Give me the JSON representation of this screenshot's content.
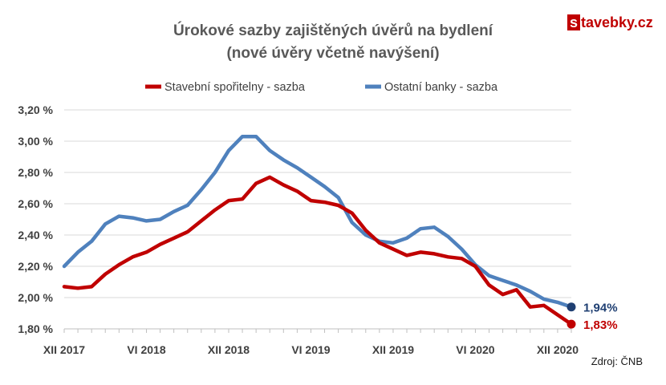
{
  "logo": {
    "badge": "s",
    "rest": "tavebky.cz"
  },
  "chart_data": {
    "type": "line",
    "title": "Úrokové sazby zajištěných úvěrů na bydlení",
    "subtitle": "(nové úvěry včetně navýšení)",
    "x_tick_labels": [
      "XII 2017",
      "VI 2018",
      "XII 2018",
      "VI 2019",
      "XII 2019",
      "VI 2020",
      "XII 2020"
    ],
    "y_tick_labels": [
      "1,80 %",
      "2,00 %",
      "2,20 %",
      "2,40 %",
      "2,60 %",
      "2,80 %",
      "3,00 %",
      "3,20 %"
    ],
    "ylim": [
      1.8,
      3.2
    ],
    "ytick_step": 0.2,
    "grid": "horizontal",
    "legend_position": "top",
    "series": [
      {
        "name": "Stavební spořitelny - sazba",
        "color": "#c00000",
        "end_label": "1,83%",
        "values": [
          2.07,
          2.06,
          2.07,
          2.15,
          2.21,
          2.26,
          2.29,
          2.34,
          2.38,
          2.42,
          2.49,
          2.56,
          2.62,
          2.63,
          2.73,
          2.77,
          2.72,
          2.68,
          2.62,
          2.61,
          2.59,
          2.54,
          2.43,
          2.35,
          2.31,
          2.27,
          2.29,
          2.28,
          2.26,
          2.25,
          2.2,
          2.08,
          2.02,
          2.05,
          1.94,
          1.95,
          1.89,
          1.83
        ]
      },
      {
        "name": "Ostatní banky - sazba",
        "color": "#4f81bd",
        "end_label": "1,94%",
        "values": [
          2.2,
          2.29,
          2.36,
          2.47,
          2.52,
          2.51,
          2.49,
          2.5,
          2.55,
          2.59,
          2.69,
          2.8,
          2.94,
          3.03,
          3.03,
          2.94,
          2.88,
          2.83,
          2.77,
          2.71,
          2.64,
          2.48,
          2.4,
          2.36,
          2.35,
          2.38,
          2.44,
          2.45,
          2.39,
          2.31,
          2.21,
          2.14,
          2.11,
          2.08,
          2.04,
          1.99,
          1.97,
          1.94
        ]
      }
    ],
    "end_label_colors": [
      "#c00000",
      "#1f3f72"
    ],
    "marker_colors": [
      "#c00000",
      "#1f3f72"
    ],
    "source": "Zdroj: ČNB"
  }
}
